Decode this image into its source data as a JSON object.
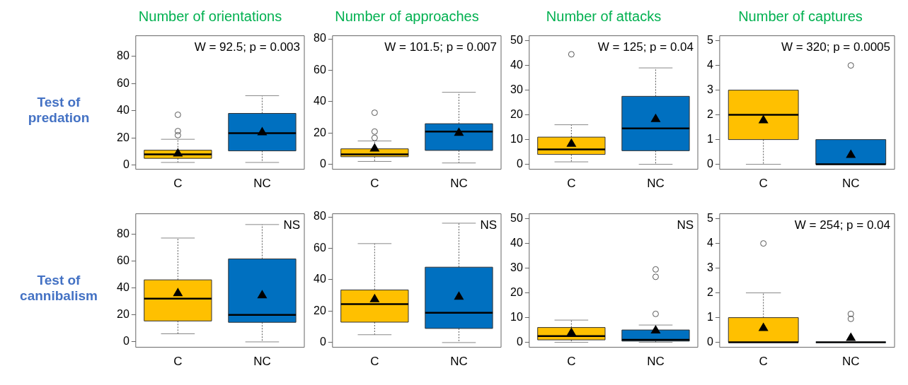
{
  "chart_data": [
    {
      "type": "box",
      "title": "Number of orientations",
      "ylabel": "Test of predation",
      "annotations": [
        "W = 92.5; p = 0.003"
      ],
      "categories": [
        "C",
        "NC"
      ],
      "colors": [
        "#ffc000",
        "#0070c0"
      ],
      "ylim": [
        -3,
        95
      ],
      "yticks": [
        0,
        20,
        40,
        60,
        80
      ],
      "boxes": [
        {
          "low": 2,
          "q1": 5,
          "median": 8,
          "q3": 11,
          "high": 19,
          "mean": 9,
          "outliers": [
            22,
            25,
            37
          ]
        },
        {
          "low": 2,
          "q1": 10.5,
          "median": 23.5,
          "q3": 38,
          "high": 51,
          "mean": 24.5
        }
      ]
    },
    {
      "type": "box",
      "title": "Number of approaches",
      "annotations": [
        "W = 101.5; p = 0.007"
      ],
      "categories": [
        "C",
        "NC"
      ],
      "colors": [
        "#ffc000",
        "#0070c0"
      ],
      "ylim": [
        -3,
        82
      ],
      "yticks": [
        0,
        20,
        40,
        60,
        80
      ],
      "boxes": [
        {
          "low": 2,
          "q1": 5,
          "median": 6.5,
          "q3": 10,
          "high": 15,
          "mean": 10.5,
          "outliers": [
            17,
            21,
            33
          ]
        },
        {
          "low": 1,
          "q1": 9,
          "median": 21,
          "q3": 26,
          "high": 46,
          "mean": 20.5
        }
      ]
    },
    {
      "type": "box",
      "title": "Number of attacks",
      "annotations": [
        "W = 125; p = 0.04"
      ],
      "categories": [
        "C",
        "NC"
      ],
      "colors": [
        "#ffc000",
        "#0070c0"
      ],
      "ylim": [
        -2,
        52
      ],
      "yticks": [
        0,
        10,
        20,
        30,
        40,
        50
      ],
      "boxes": [
        {
          "low": 1,
          "q1": 4,
          "median": 6,
          "q3": 11,
          "high": 16,
          "mean": 8.5,
          "outliers": [
            44.5
          ]
        },
        {
          "low": 0,
          "q1": 5.5,
          "median": 14.5,
          "q3": 27.5,
          "high": 39,
          "mean": 18.5
        }
      ]
    },
    {
      "type": "box",
      "title": "Number of captures",
      "annotations": [
        "W = 320; p = 0.0005"
      ],
      "categories": [
        "C",
        "NC"
      ],
      "colors": [
        "#ffc000",
        "#0070c0"
      ],
      "ylim": [
        -0.2,
        5.2
      ],
      "yticks": [
        0,
        1,
        2,
        3,
        4,
        5
      ],
      "boxes": [
        {
          "low": 0,
          "q1": 1,
          "median": 2,
          "q3": 3,
          "high": 3,
          "mean": 1.8
        },
        {
          "low": 0,
          "q1": 0,
          "median": 0,
          "q3": 1,
          "high": 1,
          "mean": 0.4,
          "outliers": [
            4
          ]
        }
      ]
    },
    {
      "type": "box",
      "ylabel": "Test of cannibalism",
      "annotations": [
        "NS"
      ],
      "categories": [
        "C",
        "NC"
      ],
      "colors": [
        "#ffc000",
        "#0070c0"
      ],
      "ylim": [
        -4,
        95
      ],
      "yticks": [
        0,
        20,
        40,
        60,
        80
      ],
      "boxes": [
        {
          "low": 6,
          "q1": 15.5,
          "median": 32,
          "q3": 46,
          "high": 77,
          "mean": 36.5
        },
        {
          "low": 0,
          "q1": 14.5,
          "median": 20,
          "q3": 61.5,
          "high": 87,
          "mean": 35
        }
      ]
    },
    {
      "type": "box",
      "annotations": [
        "NS"
      ],
      "categories": [
        "C",
        "NC"
      ],
      "colors": [
        "#ffc000",
        "#0070c0"
      ],
      "ylim": [
        -3,
        82
      ],
      "yticks": [
        0,
        20,
        40,
        60,
        80
      ],
      "boxes": [
        {
          "low": 5,
          "q1": 13,
          "median": 24.5,
          "q3": 33.5,
          "high": 63,
          "mean": 28
        },
        {
          "low": 0,
          "q1": 9,
          "median": 19,
          "q3": 48,
          "high": 76,
          "mean": 29.5
        }
      ]
    },
    {
      "type": "box",
      "annotations": [
        "NS"
      ],
      "categories": [
        "C",
        "NC"
      ],
      "colors": [
        "#ffc000",
        "#0070c0"
      ],
      "ylim": [
        -2,
        52
      ],
      "yticks": [
        0,
        10,
        20,
        30,
        40,
        50
      ],
      "boxes": [
        {
          "low": 0,
          "q1": 1,
          "median": 2.5,
          "q3": 6,
          "high": 9,
          "mean": 4
        },
        {
          "low": 0,
          "q1": 0.5,
          "median": 1,
          "q3": 5,
          "high": 7,
          "mean": 5,
          "outliers": [
            11.5,
            26.5,
            29.5
          ]
        }
      ]
    },
    {
      "type": "box",
      "annotations": [
        "W = 254; p = 0.04"
      ],
      "categories": [
        "C",
        "NC"
      ],
      "colors": [
        "#ffc000",
        "#0070c0"
      ],
      "ylim": [
        -0.2,
        5.2
      ],
      "yticks": [
        0,
        1,
        2,
        3,
        4,
        5
      ],
      "boxes": [
        {
          "low": 0,
          "q1": 0,
          "median": 0,
          "q3": 1,
          "high": 2,
          "mean": 0.6,
          "outliers": [
            4
          ]
        },
        {
          "low": 0,
          "q1": 0,
          "median": 0,
          "q3": 0,
          "high": 0,
          "mean": 0.2,
          "outliers": [
            0.95,
            1.15
          ]
        }
      ]
    }
  ]
}
